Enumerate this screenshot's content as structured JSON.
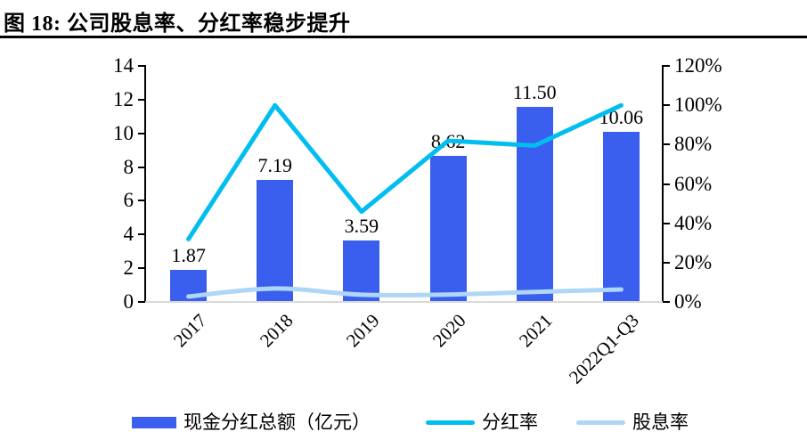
{
  "title": "图 18: 公司股息率、分红率稳步提升",
  "colors": {
    "bar": "#3a5fee",
    "payout_line": "#00bef0",
    "yield_line": "#add6f7",
    "axis": "#000000",
    "baseline": "#d9d9d9"
  },
  "legend": [
    {
      "swatch": "bar",
      "label": "现金分红总额（亿元）"
    },
    {
      "swatch": "line",
      "label": "分红率"
    },
    {
      "swatch": "line",
      "label": "股息率"
    }
  ],
  "chart_data": {
    "type": "bar+line",
    "categories": [
      "2017",
      "2018",
      "2019",
      "2020",
      "2021",
      "2022Q1-Q3"
    ],
    "series": [
      {
        "name": "现金分红总额（亿元）",
        "type": "bar",
        "axis": "left",
        "values": [
          1.87,
          7.19,
          3.59,
          8.62,
          11.5,
          10.06
        ],
        "labels": [
          "1.87",
          "7.19",
          "3.59",
          "8.62",
          "11.50",
          "10.06"
        ]
      },
      {
        "name": "分红率",
        "type": "line",
        "axis": "right",
        "values_pct": [
          31.5,
          99.5,
          45.5,
          81.5,
          79.0,
          99.5
        ],
        "note": "estimated from pixels, no data labels shown"
      },
      {
        "name": "股息率",
        "type": "line",
        "axis": "right",
        "values_pct": [
          2.3,
          6.4,
          3.2,
          3.3,
          4.6,
          5.9
        ],
        "note": "estimated from pixels, no data labels shown"
      }
    ],
    "left_axis": {
      "min": 0,
      "max": 14,
      "tick_labels": [
        "0",
        "2",
        "4",
        "6",
        "8",
        "10",
        "12",
        "14"
      ]
    },
    "right_axis": {
      "min": 0,
      "max": 120,
      "tick_labels": [
        "0%",
        "20%",
        "40%",
        "60%",
        "80%",
        "100%",
        "120%"
      ]
    },
    "grid": false,
    "legend_position": "bottom"
  }
}
